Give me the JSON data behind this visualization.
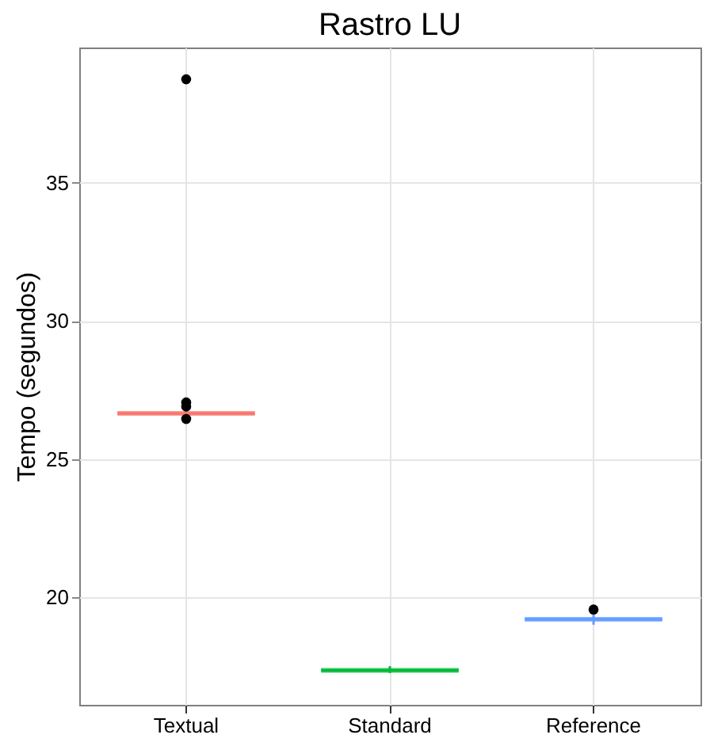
{
  "chart_data": {
    "type": "box",
    "title": "Rastro LU",
    "ylabel": "Tempo (segundos)",
    "categories": [
      "Textual",
      "Standard",
      "Reference"
    ],
    "colors": [
      "#f8766d",
      "#00ba38",
      "#619cff"
    ],
    "boxes": [
      {
        "low": 26.5,
        "q1": 26.6,
        "median": 26.65,
        "q3": 26.7,
        "high": 26.85,
        "outliers": [
          38.75,
          27.05,
          26.9,
          26.45
        ]
      },
      {
        "low": 17.25,
        "q1": 17.3,
        "median": 17.35,
        "q3": 17.4,
        "high": 17.5
      },
      {
        "low": 19.0,
        "q1": 19.15,
        "median": 19.2,
        "q3": 19.25,
        "high": 19.4,
        "outliers": [
          19.55
        ]
      }
    ],
    "ylim": [
      16.1,
      39.9
    ],
    "yticks": [
      20,
      25,
      30,
      35
    ],
    "grid": true
  }
}
